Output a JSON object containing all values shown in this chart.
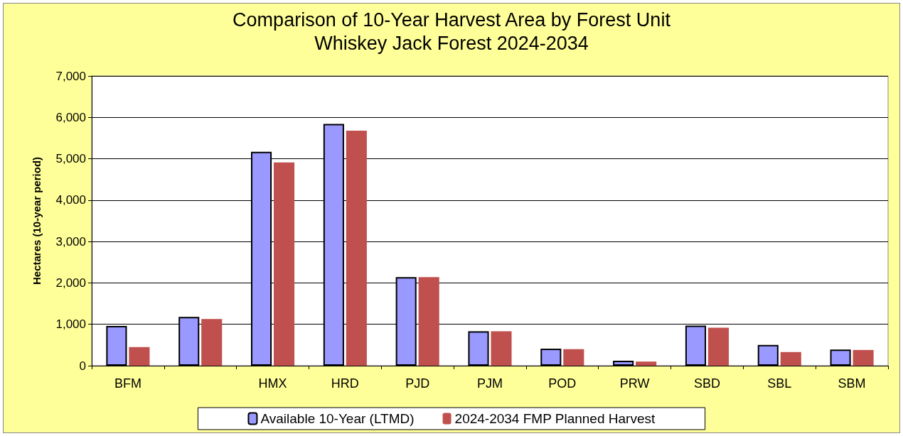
{
  "chart_data": {
    "type": "bar",
    "title": "Comparison of 10-Year Harvest Area by Forest Unit",
    "subtitle": "Whiskey Jack Forest 2024-2034",
    "ylabel": "Hectares (10-year period)",
    "categories": [
      "BFM",
      null,
      "HMX",
      "HRD",
      "PJD",
      "PJM",
      "POD",
      "PRW",
      "SBD",
      "SBL",
      "SBM"
    ],
    "series": [
      {
        "name": "Available 10-Year (LTMD)",
        "color": "#9999ff",
        "values": [
          960,
          1180,
          5170,
          5840,
          2140,
          830,
          410,
          120,
          970,
          500,
          390
        ]
      },
      {
        "name": "2024-2034 FMP Planned Harvest",
        "color": "#c0504d",
        "values": [
          450,
          1130,
          4910,
          5680,
          2140,
          830,
          400,
          100,
          920,
          330,
          380
        ]
      }
    ],
    "ylim": [
      0,
      7000
    ],
    "yticks": [
      {
        "value": 0,
        "label": "0"
      },
      {
        "value": 1000,
        "label": "1,000"
      },
      {
        "value": 2000,
        "label": "2,000"
      },
      {
        "value": 3000,
        "label": "3,000"
      },
      {
        "value": 4000,
        "label": "4,000"
      },
      {
        "value": 5000,
        "label": "5,000"
      },
      {
        "value": 6000,
        "label": "6,000"
      },
      {
        "value": 7000,
        "label": "7,000"
      }
    ],
    "grid": "y",
    "legend": "bottom"
  }
}
